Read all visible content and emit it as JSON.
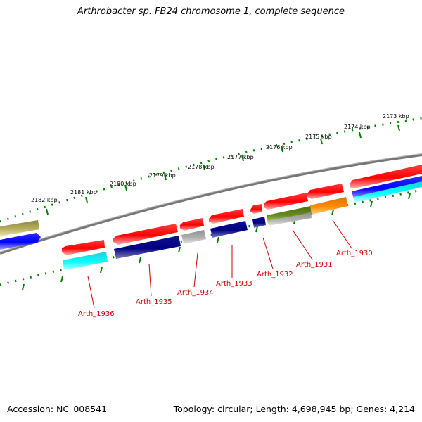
{
  "title": "Arthrobacter sp. FB24 chromosome 1, complete sequence",
  "footer": {
    "accession": "Accession: NC_008541",
    "summary": "Topology: circular; Length: 4,698,945 bp; Genes: 4,214"
  },
  "kbp_labels": [
    "2173 kbp",
    "2174 kbp",
    "2175 kbp",
    "2176 kbp",
    "2177 kbp",
    "2178 kbp",
    "2179 kbp",
    "2180 kbp",
    "2181 kbp",
    "2182 kbp"
  ],
  "gene_labels": [
    "Arth_1930",
    "Arth_1931",
    "Arth_1932",
    "Arth_1933",
    "Arth_1934",
    "Arth_1935",
    "Arth_1936"
  ],
  "colors": {
    "red": "#ff0000",
    "blue": "#0000ff",
    "navy": "#000080",
    "cyan": "#00ffff",
    "gray": "#aaaaaa",
    "olive": "#6b8e23",
    "orange": "#ff8c00",
    "khaki": "#b8b060",
    "tick": "#008000",
    "label": "#cc0000",
    "backbone": "#777777"
  }
}
